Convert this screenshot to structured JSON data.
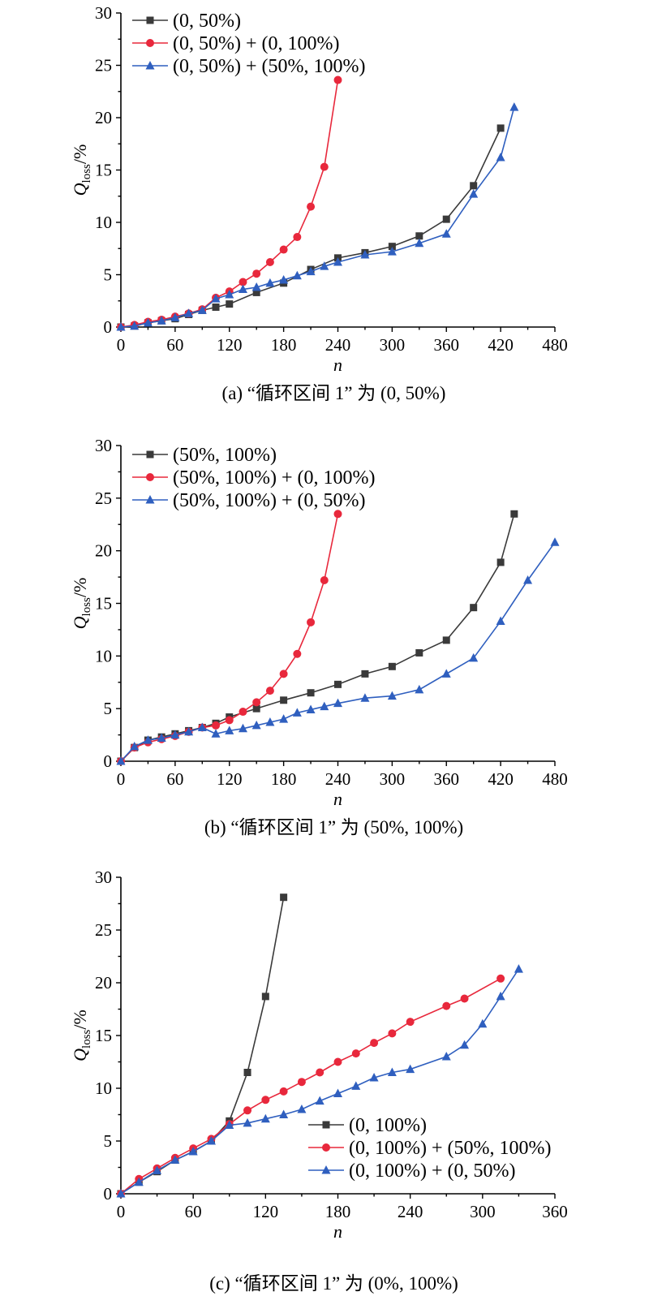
{
  "colors": {
    "black": "#3a3a3a",
    "red": "#e8283c",
    "blue": "#2f5fbf"
  },
  "chart_data": [
    {
      "type": "line",
      "caption": "(a) “循环区间 1” 为 (0, 50%)",
      "xlabel": "n",
      "ylabel_main": "Q",
      "ylabel_sub": "loss",
      "ylabel_unit": "/%",
      "xlim": [
        0,
        480
      ],
      "ylim": [
        0,
        30
      ],
      "xticks": [
        0,
        60,
        120,
        180,
        240,
        300,
        360,
        420,
        480
      ],
      "yticks": [
        0,
        5,
        10,
        15,
        20,
        25,
        30
      ],
      "legend_position": "top-left",
      "series": [
        {
          "name": "(0, 50%)",
          "color": "#3a3a3a",
          "marker": "square",
          "x": [
            0,
            15,
            30,
            45,
            60,
            75,
            90,
            105,
            120,
            150,
            180,
            210,
            240,
            270,
            300,
            330,
            360,
            390,
            420
          ],
          "y": [
            0,
            0.1,
            0.4,
            0.6,
            0.8,
            1.2,
            1.6,
            1.9,
            2.2,
            3.3,
            4.2,
            5.5,
            6.6,
            7.1,
            7.7,
            8.7,
            10.3,
            13.5,
            19.0
          ]
        },
        {
          "name": "(0, 50%) + (0, 100%)",
          "color": "#e8283c",
          "marker": "circle",
          "x": [
            0,
            15,
            30,
            45,
            60,
            75,
            90,
            105,
            120,
            135,
            150,
            165,
            180,
            195,
            210,
            225,
            240
          ],
          "y": [
            0,
            0.2,
            0.5,
            0.7,
            1.0,
            1.3,
            1.7,
            2.8,
            3.4,
            4.3,
            5.1,
            6.2,
            7.4,
            8.6,
            11.5,
            15.3,
            23.6
          ]
        },
        {
          "name": "(0, 50%) + (50%, 100%)",
          "color": "#2f5fbf",
          "marker": "triangle",
          "x": [
            0,
            15,
            30,
            45,
            60,
            75,
            90,
            105,
            120,
            135,
            150,
            165,
            180,
            195,
            210,
            225,
            240,
            270,
            300,
            330,
            360,
            390,
            420,
            435
          ],
          "y": [
            0,
            0.1,
            0.4,
            0.6,
            0.9,
            1.3,
            1.6,
            2.7,
            3.1,
            3.6,
            3.8,
            4.2,
            4.5,
            4.9,
            5.3,
            5.8,
            6.2,
            6.9,
            7.2,
            8.0,
            8.9,
            12.7,
            16.2,
            21.0
          ]
        }
      ]
    },
    {
      "type": "line",
      "caption": "(b) “循环区间 1” 为 (50%, 100%)",
      "xlabel": "n",
      "ylabel_main": "Q",
      "ylabel_sub": "loss",
      "ylabel_unit": "/%",
      "xlim": [
        0,
        480
      ],
      "ylim": [
        0,
        30
      ],
      "xticks": [
        0,
        60,
        120,
        180,
        240,
        300,
        360,
        420,
        480
      ],
      "yticks": [
        0,
        5,
        10,
        15,
        20,
        25,
        30
      ],
      "legend_position": "top-left",
      "series": [
        {
          "name": "(50%, 100%)",
          "color": "#3a3a3a",
          "marker": "square",
          "x": [
            0,
            15,
            30,
            45,
            60,
            75,
            90,
            105,
            120,
            150,
            180,
            210,
            240,
            270,
            300,
            330,
            360,
            390,
            420,
            435
          ],
          "y": [
            0,
            1.3,
            2.0,
            2.3,
            2.6,
            2.9,
            3.2,
            3.6,
            4.2,
            5.0,
            5.8,
            6.5,
            7.3,
            8.3,
            9.0,
            10.3,
            11.5,
            14.6,
            18.9,
            23.5
          ]
        },
        {
          "name": "(50%, 100%) + (0, 100%)",
          "color": "#e8283c",
          "marker": "circle",
          "x": [
            0,
            15,
            30,
            45,
            60,
            75,
            90,
            105,
            120,
            135,
            150,
            165,
            180,
            195,
            210,
            225,
            240
          ],
          "y": [
            0,
            1.3,
            1.8,
            2.1,
            2.4,
            2.8,
            3.2,
            3.4,
            3.9,
            4.7,
            5.6,
            6.7,
            8.3,
            10.2,
            13.2,
            17.2,
            23.5
          ]
        },
        {
          "name": "(50%, 100%) + (0, 50%)",
          "color": "#2f5fbf",
          "marker": "triangle",
          "x": [
            0,
            15,
            30,
            45,
            60,
            75,
            90,
            105,
            120,
            135,
            150,
            165,
            180,
            195,
            210,
            225,
            240,
            270,
            300,
            330,
            360,
            390,
            420,
            450,
            480
          ],
          "y": [
            0,
            1.4,
            2.0,
            2.2,
            2.5,
            2.8,
            3.2,
            2.6,
            2.9,
            3.1,
            3.4,
            3.7,
            4.0,
            4.6,
            4.9,
            5.2,
            5.5,
            6.0,
            6.2,
            6.8,
            8.3,
            9.8,
            13.3,
            17.2,
            20.8
          ]
        }
      ]
    },
    {
      "type": "line",
      "caption": "(c) “循环区间 1” 为 (0%, 100%)",
      "xlabel": "n",
      "ylabel_main": "Q",
      "ylabel_sub": "loss",
      "ylabel_unit": "/%",
      "xlim": [
        0,
        360
      ],
      "ylim": [
        0,
        30
      ],
      "xticks": [
        0,
        60,
        120,
        180,
        240,
        300,
        360
      ],
      "yticks": [
        0,
        5,
        10,
        15,
        20,
        25,
        30
      ],
      "legend_position": "bottom-right",
      "series": [
        {
          "name": "(0, 100%)",
          "color": "#3a3a3a",
          "marker": "square",
          "x": [
            0,
            15,
            30,
            45,
            60,
            75,
            90,
            105,
            120,
            135
          ],
          "y": [
            0,
            1.1,
            2.1,
            3.2,
            4.0,
            5.0,
            6.9,
            11.5,
            18.7,
            28.1
          ]
        },
        {
          "name": "(0, 100%) + (50%, 100%)",
          "color": "#e8283c",
          "marker": "circle",
          "x": [
            0,
            15,
            30,
            45,
            60,
            75,
            90,
            105,
            120,
            135,
            150,
            165,
            180,
            195,
            210,
            225,
            240,
            270,
            285,
            315
          ],
          "y": [
            0,
            1.4,
            2.4,
            3.4,
            4.3,
            5.2,
            6.6,
            7.9,
            8.9,
            9.7,
            10.6,
            11.5,
            12.5,
            13.3,
            14.3,
            15.2,
            16.3,
            17.8,
            18.5,
            20.4
          ]
        },
        {
          "name": "(0, 100%) + (0, 50%)",
          "color": "#2f5fbf",
          "marker": "triangle",
          "x": [
            0,
            15,
            30,
            45,
            60,
            75,
            90,
            105,
            120,
            135,
            150,
            165,
            180,
            195,
            210,
            225,
            240,
            270,
            285,
            300,
            315,
            330
          ],
          "y": [
            0,
            1.1,
            2.2,
            3.2,
            4.0,
            5.0,
            6.5,
            6.7,
            7.1,
            7.5,
            8.0,
            8.8,
            9.5,
            10.2,
            11.0,
            11.5,
            11.8,
            13.0,
            14.1,
            16.1,
            18.7,
            21.3
          ]
        }
      ]
    }
  ]
}
